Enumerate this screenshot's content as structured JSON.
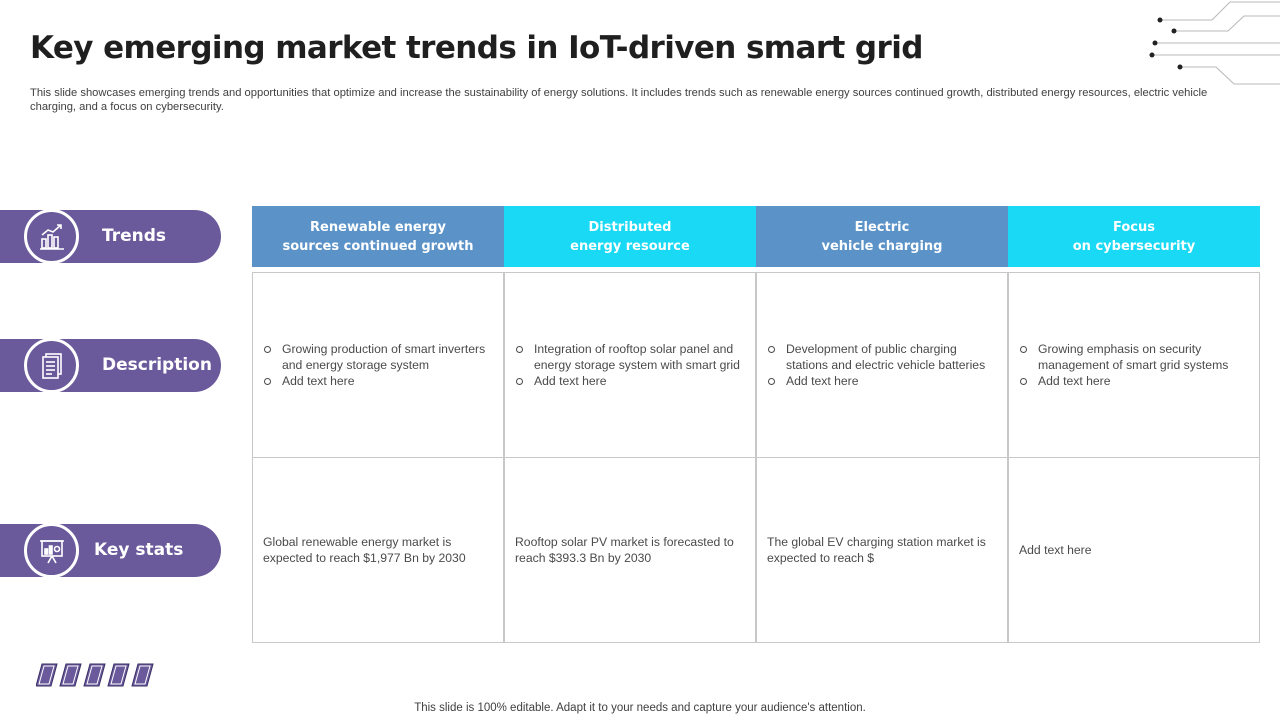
{
  "title": "Key emerging market trends in IoT-driven smart grid",
  "subtitle": "This slide showcases emerging trends and opportunities that optimize and increase the sustainability of energy solutions. It includes trends such as renewable energy sources continued growth, distributed energy resources, electric vehicle charging, and a focus on cybersecurity.",
  "rows": {
    "trends": {
      "label": "Trends",
      "icon": "growth-chart-icon"
    },
    "description": {
      "label": "Description",
      "icon": "document-icon"
    },
    "key_stats": {
      "label": "Key stats",
      "icon": "presentation-board-icon"
    }
  },
  "columns": [
    {
      "header_line1": "Renewable energy",
      "header_line2": "sources continued growth",
      "desc_items": [
        "Growing production of smart inverters and energy storage system",
        "Add text here"
      ],
      "stats": "Global renewable energy market is expected to reach $1,977 Bn by 2030"
    },
    {
      "header_line1": "Distributed",
      "header_line2": "energy resource",
      "desc_items": [
        "Integration of rooftop solar panel and energy storage system with smart grid",
        "Add text here"
      ],
      "stats": "Rooftop solar PV market is forecasted to reach $393.3 Bn by 2030"
    },
    {
      "header_line1": "Electric",
      "header_line2": "vehicle charging",
      "desc_items": [
        "Development of public charging stations and electric vehicle batteries",
        "Add text here"
      ],
      "stats": "The global EV charging station market is expected to reach $"
    },
    {
      "header_line1": "Focus",
      "header_line2": "on cybersecurity",
      "desc_items": [
        "Growing emphasis on security management of smart grid systems",
        "Add text here"
      ],
      "stats": "Add text here"
    }
  ],
  "colors": {
    "pill": "#6b5a9b",
    "header_blue": "#5b93c8",
    "header_cyan": "#1ad9f5"
  },
  "footer": "This slide is 100% editable. Adapt it to your needs and capture your audience's attention."
}
